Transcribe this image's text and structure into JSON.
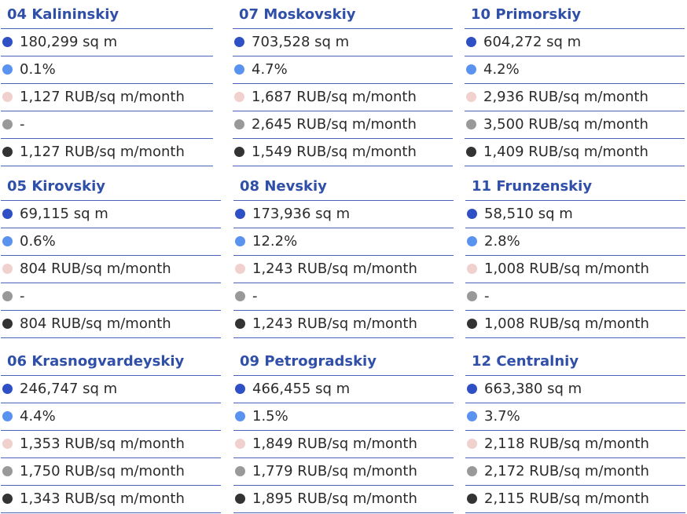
{
  "legend_colors": {
    "area": "#2f4fc4",
    "vacancy": "#5a92f0",
    "rate_1": "#f1d1cd",
    "rate_2": "#999999",
    "rate_3": "#333333"
  },
  "districts": [
    {
      "name": "04 Kalininskiy",
      "area": "180,299 sq m",
      "vacancy": "0.1%",
      "rate_1": "1,127 RUB/sq m/month",
      "rate_2": "-",
      "rate_3": "1,127 RUB/sq m/month"
    },
    {
      "name": "07 Moskovskiy",
      "area": "703,528 sq m",
      "vacancy": "4.7%",
      "rate_1": "1,687 RUB/sq m/month",
      "rate_2": "2,645 RUB/sq m/month",
      "rate_3": "1,549 RUB/sq m/month"
    },
    {
      "name": "10 Primorskiy",
      "area": "604,272 sq m",
      "vacancy": "4.2%",
      "rate_1": "2,936 RUB/sq m/month",
      "rate_2": "3,500 RUB/sq m/month",
      "rate_3": "1,409 RUB/sq m/month"
    },
    {
      "name": "05 Kirovskiy",
      "area": "69,115 sq m",
      "vacancy": "0.6%",
      "rate_1": "804 RUB/sq m/month",
      "rate_2": "-",
      "rate_3": "804 RUB/sq m/month"
    },
    {
      "name": "08 Nevskiy",
      "area": "173,936 sq m",
      "vacancy": "12.2%",
      "rate_1": "1,243 RUB/sq m/month",
      "rate_2": "-",
      "rate_3": "1,243 RUB/sq m/month"
    },
    {
      "name": "11 Frunzenskiy",
      "area": "58,510 sq m",
      "vacancy": "2.8%",
      "rate_1": "1,008 RUB/sq m/month",
      "rate_2": "-",
      "rate_3": "1,008 RUB/sq m/month"
    },
    {
      "name": "06 Krasnogvardeyskiy",
      "area": "246,747 sq m",
      "vacancy": "4.4%",
      "rate_1": "1,353 RUB/sq m/month",
      "rate_2": "1,750 RUB/sq m/month",
      "rate_3": "1,343 RUB/sq m/month"
    },
    {
      "name": "09 Petrogradskiy",
      "area": "466,455 sq m",
      "vacancy": "1.5%",
      "rate_1": "1,849 RUB/sq m/month",
      "rate_2": "1,779 RUB/sq m/month",
      "rate_3": "1,895 RUB/sq m/month"
    },
    {
      "name": "12 Centralniy",
      "area": "663,380 sq m",
      "vacancy": "3.7%",
      "rate_1": "2,118 RUB/sq m/month",
      "rate_2": "2,172 RUB/sq m/month",
      "rate_3": "2,115 RUB/sq m/month"
    }
  ]
}
